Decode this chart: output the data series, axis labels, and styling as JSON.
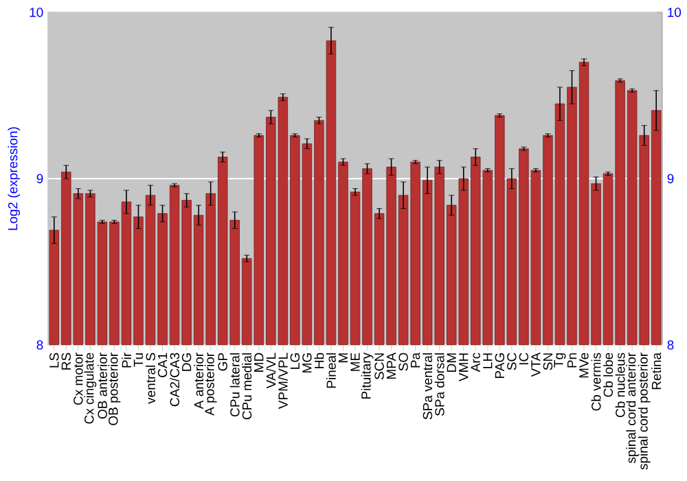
{
  "chart_data": {
    "type": "bar",
    "ylabel": "Log2 (expression)",
    "color": "#b83232",
    "categories": [
      "LS",
      "RS",
      "Cx motor",
      "Cx cingulate",
      "OB anterior",
      "OB posterior",
      "Pir",
      "Tu",
      "ventral S",
      "CA1",
      "CA2/CA3",
      "DG",
      "A anterior",
      "A posterior",
      "GP",
      "CPu lateral",
      "CPu medial",
      "MD",
      "VA/VL",
      "VPM/VPL",
      "LG",
      "MG",
      "Hb",
      "Pineal",
      "M",
      "ME",
      "Pituitary",
      "SCN",
      "MPA",
      "SO",
      "Pa",
      "SPa ventral",
      "SPa dorsal",
      "DM",
      "VMH",
      "Arc",
      "LH",
      "PAG",
      "SC",
      "IC",
      "VTA",
      "SN",
      "Tg",
      "Pn",
      "MVe",
      "Cb vermis",
      "Cb lobe",
      "Cb nucleus",
      "spinal cord anterior",
      "spinal cord posterior",
      "Retina"
    ],
    "values": [
      8.69,
      9.04,
      8.91,
      8.91,
      8.74,
      8.74,
      8.86,
      8.77,
      8.9,
      8.79,
      8.96,
      8.87,
      8.78,
      8.91,
      9.13,
      8.75,
      8.52,
      9.26,
      9.37,
      9.49,
      9.26,
      9.21,
      9.35,
      9.83,
      9.1,
      8.92,
      9.06,
      8.79,
      9.07,
      8.9,
      9.1,
      8.99,
      9.07,
      8.84,
      9.0,
      9.13,
      9.05,
      9.38,
      9.0,
      9.18,
      9.05,
      9.26,
      9.45,
      9.55,
      9.7,
      8.97,
      9.03,
      9.59,
      9.53,
      9.26,
      9.41
    ],
    "errors": [
      0.08,
      0.04,
      0.03,
      0.02,
      0.01,
      0.01,
      0.07,
      0.07,
      0.06,
      0.05,
      0.01,
      0.04,
      0.06,
      0.07,
      0.03,
      0.05,
      0.02,
      0.01,
      0.04,
      0.02,
      0.01,
      0.03,
      0.02,
      0.08,
      0.02,
      0.02,
      0.03,
      0.03,
      0.05,
      0.08,
      0.01,
      0.08,
      0.04,
      0.06,
      0.07,
      0.05,
      0.01,
      0.01,
      0.06,
      0.01,
      0.01,
      0.01,
      0.1,
      0.1,
      0.02,
      0.04,
      0.01,
      0.01,
      0.01,
      0.06,
      0.12
    ],
    "ylim": [
      8,
      10
    ],
    "yticks": [
      8,
      9,
      10
    ],
    "y2lim": [
      8,
      10
    ],
    "y2ticks": [
      8,
      9,
      10
    ],
    "grid": "y"
  }
}
